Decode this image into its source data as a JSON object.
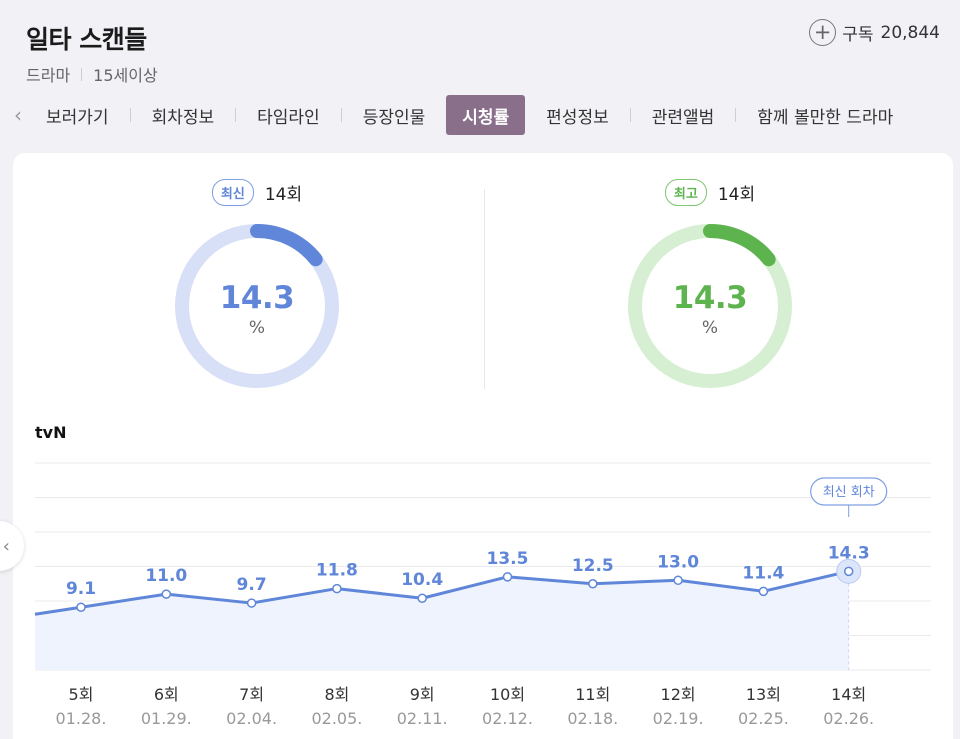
{
  "header": {
    "title": "일타 스캔들",
    "genre": "드라마",
    "rating": "15세이상",
    "subscribe_label": "구독",
    "subscribe_count": "20,844"
  },
  "tabs": [
    {
      "label": "보러가기"
    },
    {
      "label": "회차정보"
    },
    {
      "label": "타임라인"
    },
    {
      "label": "등장인물"
    },
    {
      "label": "시청률",
      "active": true
    },
    {
      "label": "편성정보"
    },
    {
      "label": "관련앨범"
    },
    {
      "label": "함께 볼만한 드라마"
    }
  ],
  "summary": {
    "latest": {
      "badge": "최신",
      "episode": "14회",
      "value": "14.3",
      "unit": "%",
      "fraction": 0.143,
      "color": "#5f86d8",
      "track": "#d7e0f6"
    },
    "best": {
      "badge": "최고",
      "episode": "14회",
      "value": "14.3",
      "unit": "%",
      "fraction": 0.143,
      "color": "#5db34d",
      "track": "#d6efd2"
    }
  },
  "chart_data": {
    "type": "line",
    "network": "tvN",
    "categories": [
      "5회",
      "6회",
      "7회",
      "8회",
      "9회",
      "10회",
      "11회",
      "12회",
      "13회",
      "14회"
    ],
    "dates": [
      "01.28.",
      "01.29.",
      "02.04.",
      "02.05.",
      "02.11.",
      "02.12.",
      "02.18.",
      "02.19.",
      "02.25.",
      "02.26."
    ],
    "values": [
      9.1,
      11.0,
      9.7,
      11.8,
      10.4,
      13.5,
      12.5,
      13.0,
      11.4,
      14.3
    ],
    "ylim": [
      0,
      30
    ],
    "latest_tag": "최신 회차",
    "line_color": "#5f86d8",
    "fill_color": "#eef3fd",
    "grid": true
  }
}
